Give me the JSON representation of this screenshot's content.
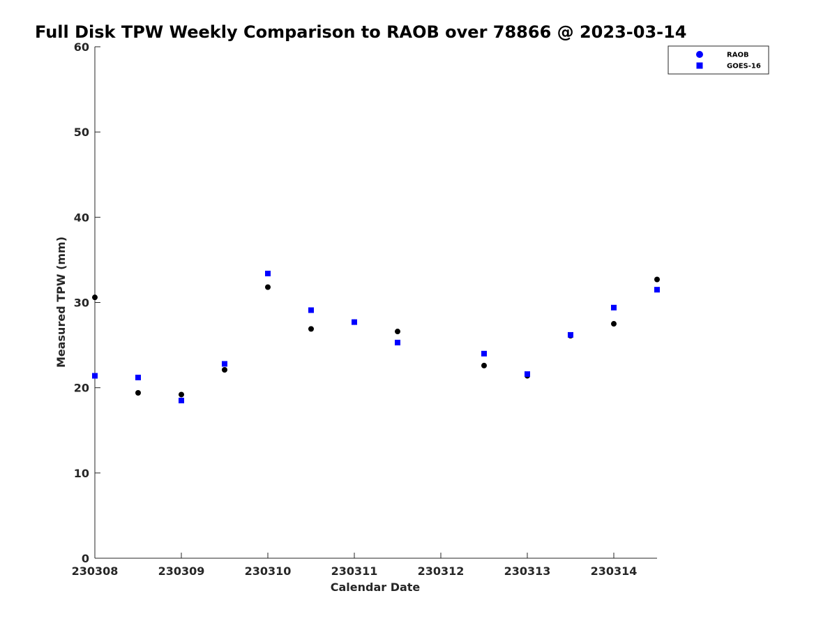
{
  "chart_data": {
    "type": "scatter",
    "title": "Full Disk TPW Weekly Comparison to RAOB over 78866 @ 2023-03-14",
    "xlabel": "Calendar Date",
    "ylabel": "Measured TPW (mm)",
    "xlim": [
      "2023-03-08 00:00",
      "2023-03-14 12:00"
    ],
    "ylim": [
      0,
      60
    ],
    "x_ticks": [
      {
        "label": "230308",
        "x": "2023-03-08 00:00"
      },
      {
        "label": "230309",
        "x": "2023-03-09 00:00"
      },
      {
        "label": "230310",
        "x": "2023-03-10 00:00"
      },
      {
        "label": "230311",
        "x": "2023-03-11 00:00"
      },
      {
        "label": "230312",
        "x": "2023-03-12 00:00"
      },
      {
        "label": "230313",
        "x": "2023-03-13 00:00"
      },
      {
        "label": "230314",
        "x": "2023-03-14 00:00"
      }
    ],
    "y_ticks": [
      0,
      10,
      20,
      30,
      40,
      50,
      60
    ],
    "legend_position": "top-right",
    "grid": false,
    "series": [
      {
        "name": "RAOB",
        "marker": "circle",
        "color": "#000000",
        "legend_marker_color": "#0000ff",
        "points": [
          {
            "x": "2023-03-08 00:00",
            "y": 30.6
          },
          {
            "x": "2023-03-08 12:00",
            "y": 19.4
          },
          {
            "x": "2023-03-09 00:00",
            "y": 19.2
          },
          {
            "x": "2023-03-09 12:00",
            "y": 22.1
          },
          {
            "x": "2023-03-10 00:00",
            "y": 31.8
          },
          {
            "x": "2023-03-10 12:00",
            "y": 26.9
          },
          {
            "x": "2023-03-11 00:00",
            "y": 27.7
          },
          {
            "x": "2023-03-11 12:00",
            "y": 26.6
          },
          {
            "x": "2023-03-12 12:00",
            "y": 22.6
          },
          {
            "x": "2023-03-13 00:00",
            "y": 21.4
          },
          {
            "x": "2023-03-13 12:00",
            "y": 26.1
          },
          {
            "x": "2023-03-14 00:00",
            "y": 27.5
          },
          {
            "x": "2023-03-14 12:00",
            "y": 32.7
          }
        ]
      },
      {
        "name": "GOES-16",
        "marker": "square",
        "color": "#0000ff",
        "points": [
          {
            "x": "2023-03-08 00:00",
            "y": 21.4
          },
          {
            "x": "2023-03-08 12:00",
            "y": 21.2
          },
          {
            "x": "2023-03-09 00:00",
            "y": 18.5
          },
          {
            "x": "2023-03-09 12:00",
            "y": 22.8
          },
          {
            "x": "2023-03-10 00:00",
            "y": 33.4
          },
          {
            "x": "2023-03-10 12:00",
            "y": 29.1
          },
          {
            "x": "2023-03-11 00:00",
            "y": 27.7
          },
          {
            "x": "2023-03-11 12:00",
            "y": 25.3
          },
          {
            "x": "2023-03-12 12:00",
            "y": 24.0
          },
          {
            "x": "2023-03-13 00:00",
            "y": 21.6
          },
          {
            "x": "2023-03-13 12:00",
            "y": 26.2
          },
          {
            "x": "2023-03-14 00:00",
            "y": 29.4
          },
          {
            "x": "2023-03-14 12:00",
            "y": 31.5
          }
        ]
      }
    ]
  }
}
